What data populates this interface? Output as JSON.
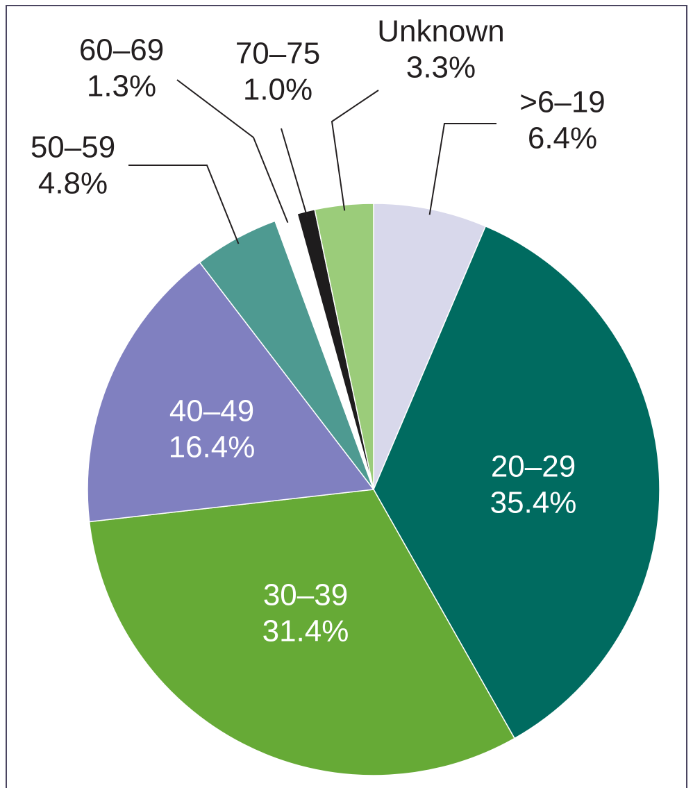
{
  "chart_data": {
    "type": "pie",
    "categories": [
      ">6–19",
      "20–29",
      "30–39",
      "40–49",
      "50–59",
      "60–69",
      "70–75",
      "Unknown"
    ],
    "values": [
      6.4,
      35.4,
      31.4,
      16.4,
      4.8,
      1.3,
      1.0,
      3.3
    ],
    "value_labels": [
      "6.4%",
      "35.4%",
      "31.4%",
      "16.4%",
      "4.8%",
      "1.3%",
      "1.0%",
      "3.3%"
    ],
    "colors": [
      "#d8d8eb",
      "#006b60",
      "#66aa36",
      "#8080c0",
      "#4e9a91",
      "#ffffff",
      "#1e1c1d",
      "#9bcc7a"
    ]
  }
}
